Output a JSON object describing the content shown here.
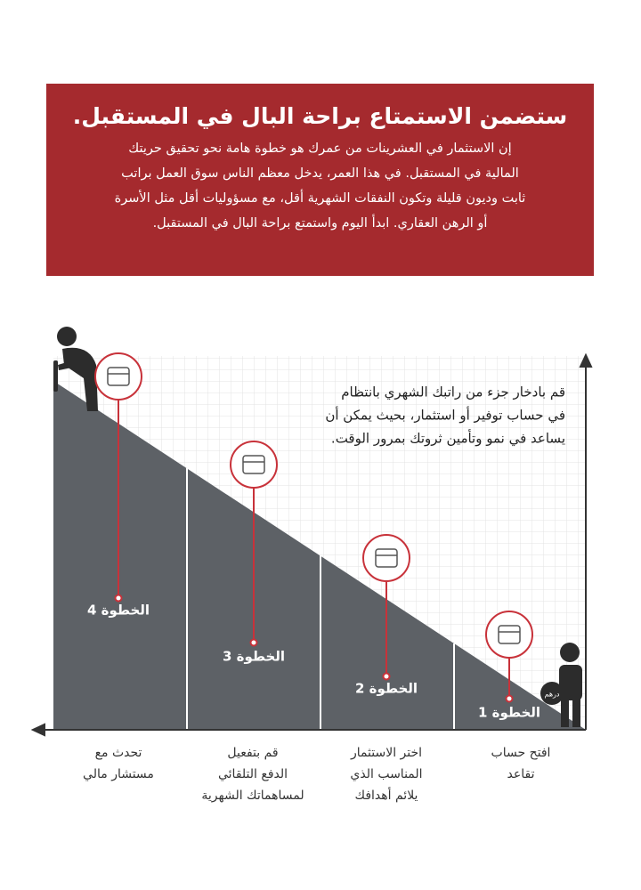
{
  "header": {
    "title": "ستضمن الاستمتاع براحة البال في المستقبل.",
    "paragraph": [
      "إن الاستثمار في العشرينات من عمرك هو خطوة هامة نحو تحقيق حريتك",
      "المالية في المستقبل. في هذا العمر، يدخل معظم الناس سوق العمل براتب",
      "ثابت وديون قليلة وتكون النفقات الشهرية أقل، مع مسؤوليات أقل مثل الأسرة",
      "أو الرهن العقاري. ابدأ اليوم واستمتع براحة البال في المستقبل."
    ]
  },
  "description": [
    "قم بادخار جزء من راتبك الشهري بانتظام",
    "في حساب توفير أو استثمار، بحيث يمكن أن",
    "يساعد في نمو وتأمين ثروتك بمرور الوقت."
  ],
  "coin_label": "درهم",
  "steps": [
    {
      "label": "الخطوة 1",
      "caption": [
        "افتح حساب",
        "تقاعد"
      ]
    },
    {
      "label": "الخطوة 2",
      "caption": [
        "اختر الاستثمار",
        "المناسب الذي",
        "يلائم أهدافك"
      ]
    },
    {
      "label": "الخطوة 3",
      "caption": [
        "قم بتفعيل",
        "الدفع التلقائي",
        "لمساهماتك الشهرية"
      ]
    },
    {
      "label": "الخطوة 4",
      "caption": [
        "تحدث مع",
        "مستشار مالي"
      ]
    }
  ]
}
